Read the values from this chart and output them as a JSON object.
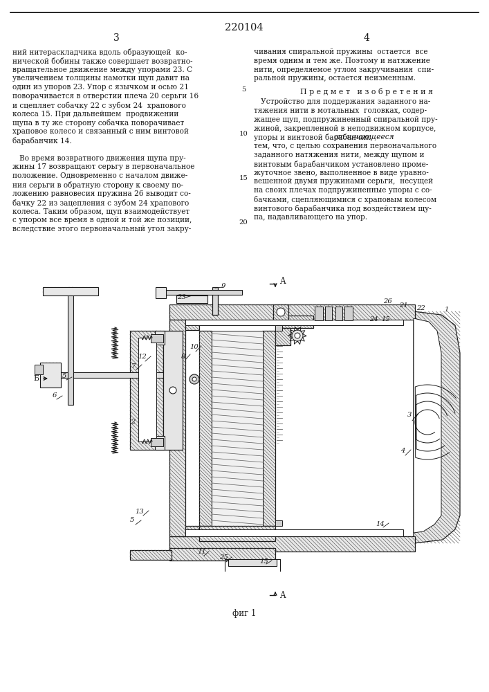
{
  "patent_number": "220104",
  "page_left": "3",
  "page_right": "4",
  "background_color": "#ffffff",
  "text_color": "#1a1a1a",
  "left_column_text": [
    "ний нитераскладчика вдоль образующей  ко-",
    "нической бобины также совершает возвратно-",
    "вращательное движение между упорами 23. С",
    "увеличением толщины намотки щуп давит на",
    "один из упоров 23. Упор с язычком и осью 21",
    "поворачивается в отверстии плеча 20 серьги 16",
    "и сцепляет собачку 22 с зубом 24  храпового",
    "колеса 15. При дальнейшем  продвижении",
    "щупа в ту же сторону собачка поворачивает",
    "храповое колесо и связанный с ним винтовой",
    "барабанчик 14.",
    "",
    "   Во время возвратного движения щупа пру-",
    "жины 17 возвращают серьгу в первоначальное",
    "положение. Одновременно с началом движе-",
    "ния серьги в обратную сторону к своему по-",
    "ложению равновесия пружина 26 выводит со-",
    "бачку 22 из зацепления с зубом 24 храпового",
    "колеса. Таким образом, щуп взаимодействует",
    "с упором все время в одной и той же позиции,",
    "вследствие этого первоначальный угол закру-"
  ],
  "line_numbers": [
    [
      4,
      "5"
    ],
    [
      9,
      "10"
    ],
    [
      14,
      "15"
    ],
    [
      19,
      "20"
    ]
  ],
  "right_column_text_top": [
    "чивания спиральной пружины  остается  все",
    "время одним и тем же. Поэтому и натяжение",
    "нити, определяемое углом закручивания  спи-",
    "ральной пружины, остается неизменным."
  ],
  "section_title": "П р е д м е т   и з о б р е т е н и я",
  "right_column_text_body": [
    "   Устройство для поддержания заданного на-",
    "тяжения нити в мотальных  головках, содер-",
    "жащее щуп, подпружиненный спиральной пру-",
    "жиной, закрепленной в неподвижном корпусе,",
    "упоры и винтовой барабанчик, отличающееся",
    "тем, что, с целью сохранения первоначального",
    "заданного натяжения нити, между щупом и",
    "винтовым барабанчиком установлено проме-",
    "жуточное звено, выполненное в виде уравно-",
    "вешенной двумя пружинами серьги,  несущей",
    "на своих плечах подпружиненные упоры с со-",
    "бачками, сцепляющимися с храповым колесом",
    "винтового барабанчика под воздействием щу-",
    "па, надавливающего на упор."
  ],
  "fig_label": "фиг 1",
  "figsize": [
    7.07,
    10.0
  ],
  "dpi": 100
}
